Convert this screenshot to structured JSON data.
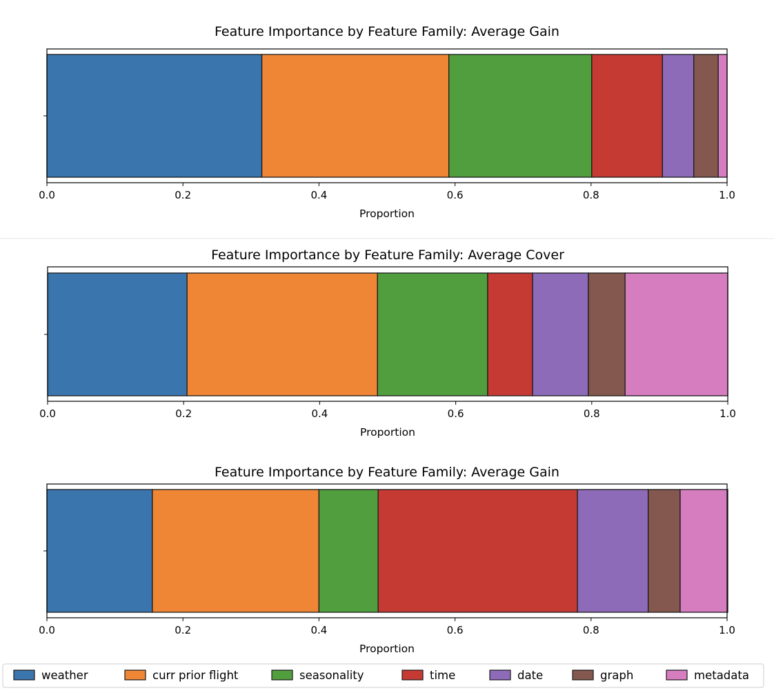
{
  "colors": {
    "weather": "#3a75ae",
    "curr prior flight": "#ef8636",
    "seasonality": "#519e3e",
    "time": "#c53a32",
    "date": "#8d6bb8",
    "graph": "#84584e",
    "metadata": "#d57dbf"
  },
  "legend": {
    "placement": "bottom",
    "entries": [
      "weather",
      "curr prior flight",
      "seasonality",
      "time",
      "date",
      "graph",
      "metadata"
    ]
  },
  "chart_data": [
    {
      "type": "bar",
      "stacked": "horizontal",
      "title": "Feature Importance by Feature Family: Average Gain",
      "xlabel": "Proportion",
      "xlim": [
        0,
        1
      ],
      "xticks": [
        "0.0",
        "0.2",
        "0.4",
        "0.6",
        "0.8",
        "1.0"
      ],
      "series": [
        {
          "name": "weather",
          "value": 0.316
        },
        {
          "name": "curr prior flight",
          "value": 0.275
        },
        {
          "name": "seasonality",
          "value": 0.21
        },
        {
          "name": "time",
          "value": 0.104
        },
        {
          "name": "date",
          "value": 0.046
        },
        {
          "name": "graph",
          "value": 0.036
        },
        {
          "name": "metadata",
          "value": 0.013
        }
      ]
    },
    {
      "type": "bar",
      "stacked": "horizontal",
      "title": "Feature Importance by Feature Family: Average Cover",
      "xlabel": "Proportion",
      "xlim": [
        0,
        1
      ],
      "xticks": [
        "0.0",
        "0.2",
        "0.4",
        "0.6",
        "0.8",
        "1.0"
      ],
      "series": [
        {
          "name": "weather",
          "value": 0.205
        },
        {
          "name": "curr prior flight",
          "value": 0.28
        },
        {
          "name": "seasonality",
          "value": 0.162
        },
        {
          "name": "time",
          "value": 0.066
        },
        {
          "name": "date",
          "value": 0.082
        },
        {
          "name": "graph",
          "value": 0.054
        },
        {
          "name": "metadata",
          "value": 0.151
        }
      ]
    },
    {
      "type": "bar",
      "stacked": "horizontal",
      "title": "Feature Importance by Feature Family: Average Gain",
      "xlabel": "Proportion",
      "xlim": [
        0,
        1
      ],
      "xticks": [
        "0.0",
        "0.2",
        "0.4",
        "0.6",
        "0.8",
        "1.0"
      ],
      "series": [
        {
          "name": "weather",
          "value": 0.155
        },
        {
          "name": "curr prior flight",
          "value": 0.245
        },
        {
          "name": "seasonality",
          "value": 0.087
        },
        {
          "name": "time",
          "value": 0.293
        },
        {
          "name": "date",
          "value": 0.104
        },
        {
          "name": "graph",
          "value": 0.047
        },
        {
          "name": "metadata",
          "value": 0.07
        }
      ]
    }
  ]
}
